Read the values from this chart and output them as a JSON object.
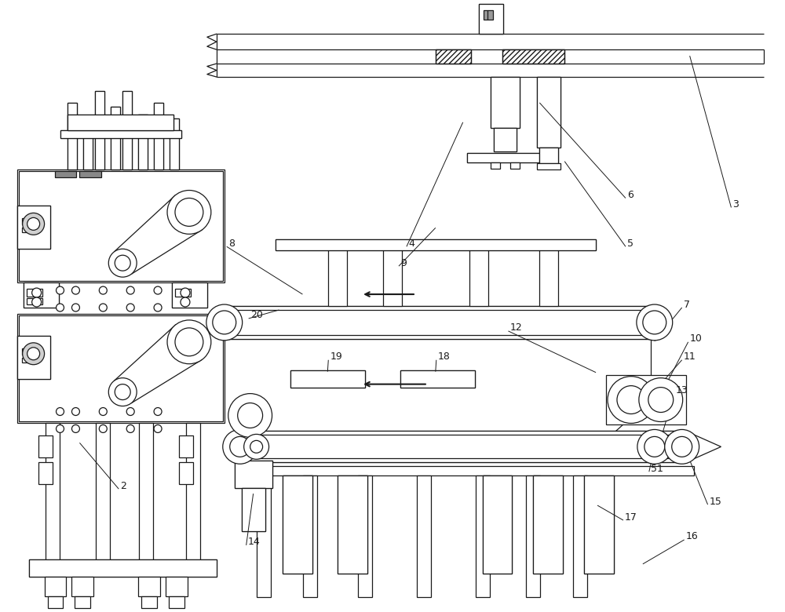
{
  "bg_color": "#ffffff",
  "lc": "#1a1a1a",
  "figsize": [
    10.0,
    7.8
  ],
  "dpi": 100
}
